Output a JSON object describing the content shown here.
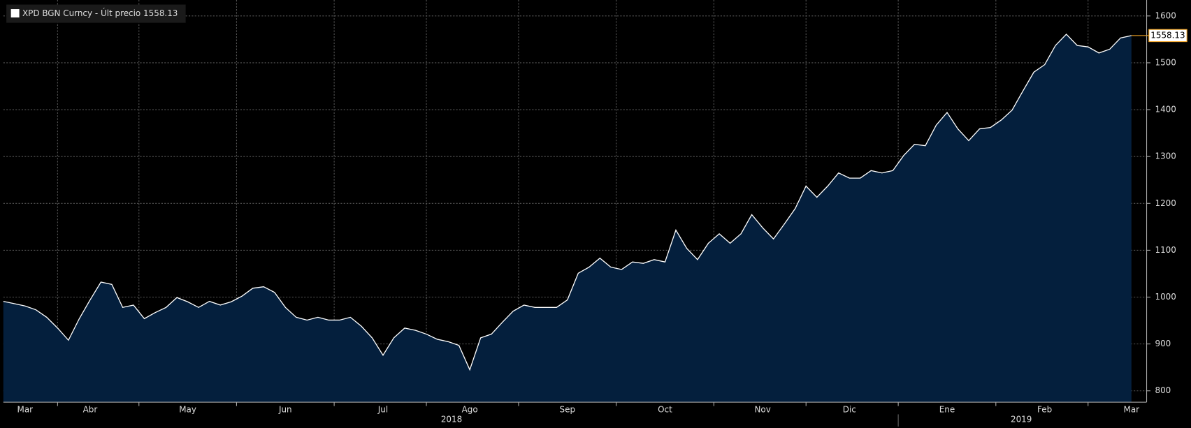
{
  "chart_data": {
    "type": "area",
    "series": [
      {
        "name": "XPD BGN Curncy - Últ precio 1558.13",
        "color": "#ffffff",
        "fill": "#041f3d",
        "values": [
          991,
          986,
          981,
          973,
          957,
          934,
          908,
          954,
          994,
          1032,
          1027,
          978,
          983,
          954,
          967,
          978,
          999,
          990,
          978,
          991,
          983,
          990,
          1002,
          1019,
          1022,
          1010,
          978,
          957,
          951,
          957,
          951,
          951,
          957,
          938,
          913,
          876,
          913,
          934,
          929,
          921,
          910,
          905,
          897,
          845,
          913,
          921,
          946,
          970,
          983,
          978,
          978,
          978,
          994,
          1051,
          1064,
          1083,
          1064,
          1059,
          1075,
          1072,
          1080,
          1075,
          1143,
          1104,
          1080,
          1115,
          1135,
          1115,
          1135,
          1176,
          1148,
          1124,
          1156,
          1189,
          1237,
          1213,
          1237,
          1265,
          1254,
          1254,
          1270,
          1265,
          1270,
          1302,
          1326,
          1323,
          1367,
          1394,
          1359,
          1334,
          1359,
          1362,
          1378,
          1399,
          1440,
          1480,
          1496,
          1537,
          1561,
          1537,
          1534,
          1521,
          1529,
          1553,
          1558.13
        ]
      }
    ],
    "categories": [
      null,
      null,
      "Mar",
      null,
      null,
      null,
      null,
      null,
      "Abr",
      null,
      null,
      null,
      null,
      null,
      null,
      null,
      null,
      "May",
      null,
      null,
      null,
      null,
      null,
      null,
      null,
      null,
      "Jun",
      null,
      null,
      null,
      null,
      null,
      null,
      null,
      null,
      "Jul",
      null,
      null,
      null,
      null,
      null,
      null,
      null,
      "Ago",
      null,
      null,
      null,
      null,
      null,
      null,
      null,
      null,
      "Sep",
      null,
      null,
      null,
      null,
      null,
      null,
      null,
      null,
      "Oct",
      null,
      null,
      null,
      null,
      null,
      null,
      null,
      null,
      "Nov",
      null,
      null,
      null,
      null,
      null,
      null,
      null,
      "Dic",
      null,
      null,
      null,
      null,
      null,
      null,
      null,
      null,
      "Ene",
      null,
      null,
      null,
      null,
      null,
      null,
      null,
      null,
      "Feb",
      null,
      null,
      null,
      null,
      null,
      null,
      null,
      "Mar"
    ],
    "years": [
      "2018",
      "2019"
    ],
    "ylim": [
      800,
      1600
    ],
    "yticks": [
      800,
      900,
      1000,
      1100,
      1200,
      1300,
      1400,
      1500,
      1600
    ],
    "grid": true,
    "last_value_color": "#f5a623"
  }
}
